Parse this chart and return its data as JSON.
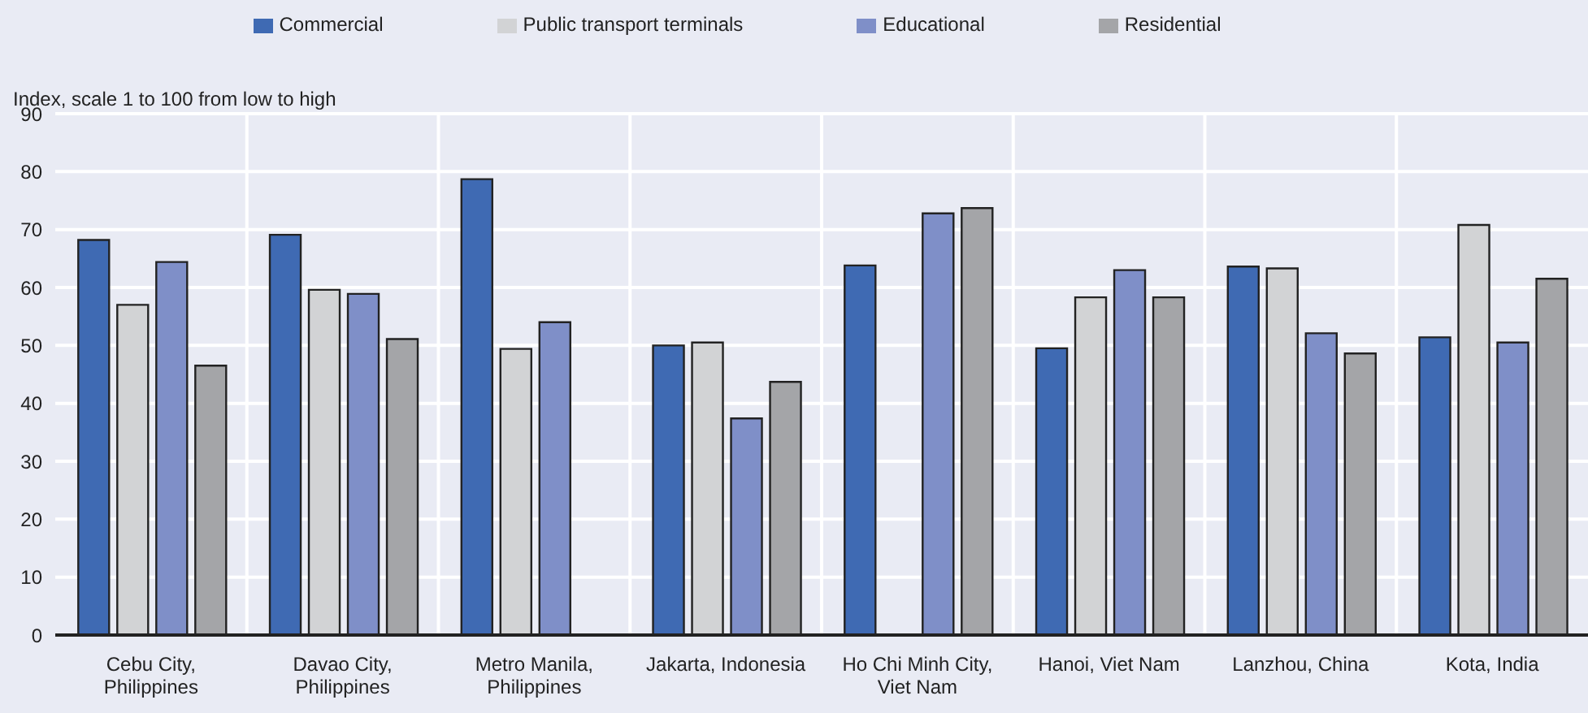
{
  "chart_data": {
    "type": "bar",
    "ylabel": "Index, scale 1 to 100 from low to high",
    "categories": [
      "Cebu City, Philippines",
      "Davao City, Philippines",
      "Metro Manila, Philippines",
      "Jakarta, Indonesia",
      "Ho Chi Minh City, Viet Nam",
      "Hanoi, Viet Nam",
      "Lanzhou, China",
      "Kota, India"
    ],
    "series": [
      {
        "name": "Commercial",
        "color": "#3f6ab3",
        "values": [
          68.2,
          69.1,
          78.7,
          50,
          63.8,
          49.5,
          63.6,
          51.4
        ]
      },
      {
        "name": "Public transport terminals",
        "color": "#d2d3d5",
        "values": [
          57,
          59.6,
          49.4,
          50.5,
          null,
          58.3,
          63.3,
          70.8
        ]
      },
      {
        "name": "Educational",
        "color": "#7f8fc8",
        "values": [
          64.4,
          58.9,
          54,
          37.4,
          72.8,
          63,
          52.1,
          50.5
        ]
      },
      {
        "name": "Residential",
        "color": "#a4a5a8",
        "values": [
          46.5,
          51.1,
          null,
          43.7,
          73.7,
          58.3,
          48.6,
          61.5
        ]
      }
    ],
    "ylim": [
      0,
      90
    ],
    "yticks": [
      0,
      10,
      20,
      30,
      40,
      50,
      60,
      70,
      80,
      90
    ],
    "grid": true,
    "legend": "top"
  }
}
